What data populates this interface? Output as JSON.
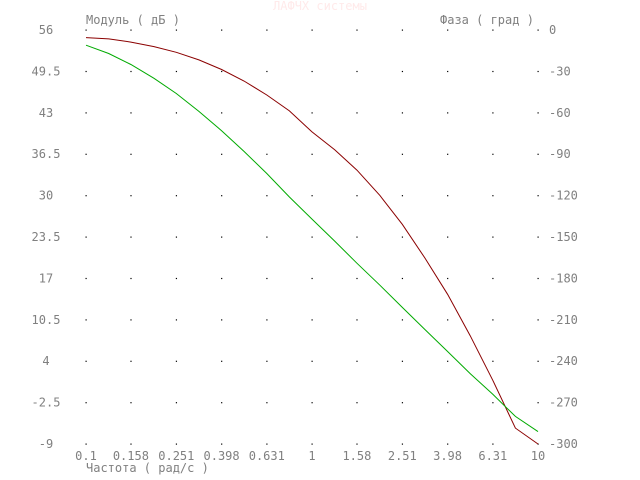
{
  "chart_data": {
    "type": "line",
    "title": "ЛАФЧХ системы",
    "xlabel": "Частота ( рад/с )",
    "ylabel_left": "Модуль ( дБ )",
    "ylabel_right": "Фаза ( град )",
    "x_scale": "log",
    "x_ticks": [
      0.1,
      0.158,
      0.251,
      0.398,
      0.631,
      1,
      1.58,
      2.51,
      3.98,
      6.31,
      10
    ],
    "x_tick_labels": [
      "0.1",
      "0.158",
      "0.251",
      "0.398",
      "0.631",
      "1",
      "1.58",
      "2.51",
      "3.98",
      "6.31",
      "10"
    ],
    "ylim_left": [
      -9,
      56
    ],
    "y_ticks_left": [
      56,
      49.5,
      43,
      36.5,
      30,
      23.5,
      17,
      10.5,
      4,
      -2.5,
      -9
    ],
    "ylim_right": [
      -300,
      0
    ],
    "y_ticks_right": [
      0,
      -30,
      -60,
      -90,
      -120,
      -150,
      -180,
      -210,
      -240,
      -270,
      -300
    ],
    "grid": true,
    "series": [
      {
        "axis": "left",
        "color": "#8b0000",
        "x": [
          0.1,
          0.126,
          0.158,
          0.2,
          0.251,
          0.316,
          0.398,
          0.5,
          0.631,
          0.794,
          1,
          1.26,
          1.58,
          2,
          2.51,
          3.16,
          3.98,
          5.01,
          6.31,
          7.94,
          10
        ],
        "values": [
          54.8,
          54.6,
          54.1,
          53.4,
          52.5,
          51.3,
          49.8,
          48.0,
          45.8,
          43.3,
          40.0,
          37.2,
          34.0,
          30.0,
          25.5,
          20.2,
          14.5,
          8.0,
          1.0,
          -6.5,
          -9.0
        ]
      },
      {
        "axis": "right",
        "color": "#00aa00",
        "x": [
          0.1,
          0.126,
          0.158,
          0.2,
          0.251,
          0.316,
          0.398,
          0.5,
          0.631,
          0.794,
          1,
          1.26,
          1.58,
          2,
          2.51,
          3.16,
          3.98,
          5.01,
          6.31,
          7.94,
          10
        ],
        "values": [
          -11,
          -17,
          -25,
          -35,
          -46,
          -59,
          -73,
          -88,
          -104,
          -121,
          -137,
          -153,
          -169,
          -185,
          -201,
          -217,
          -233,
          -249,
          -264,
          -280,
          -291
        ]
      }
    ]
  }
}
